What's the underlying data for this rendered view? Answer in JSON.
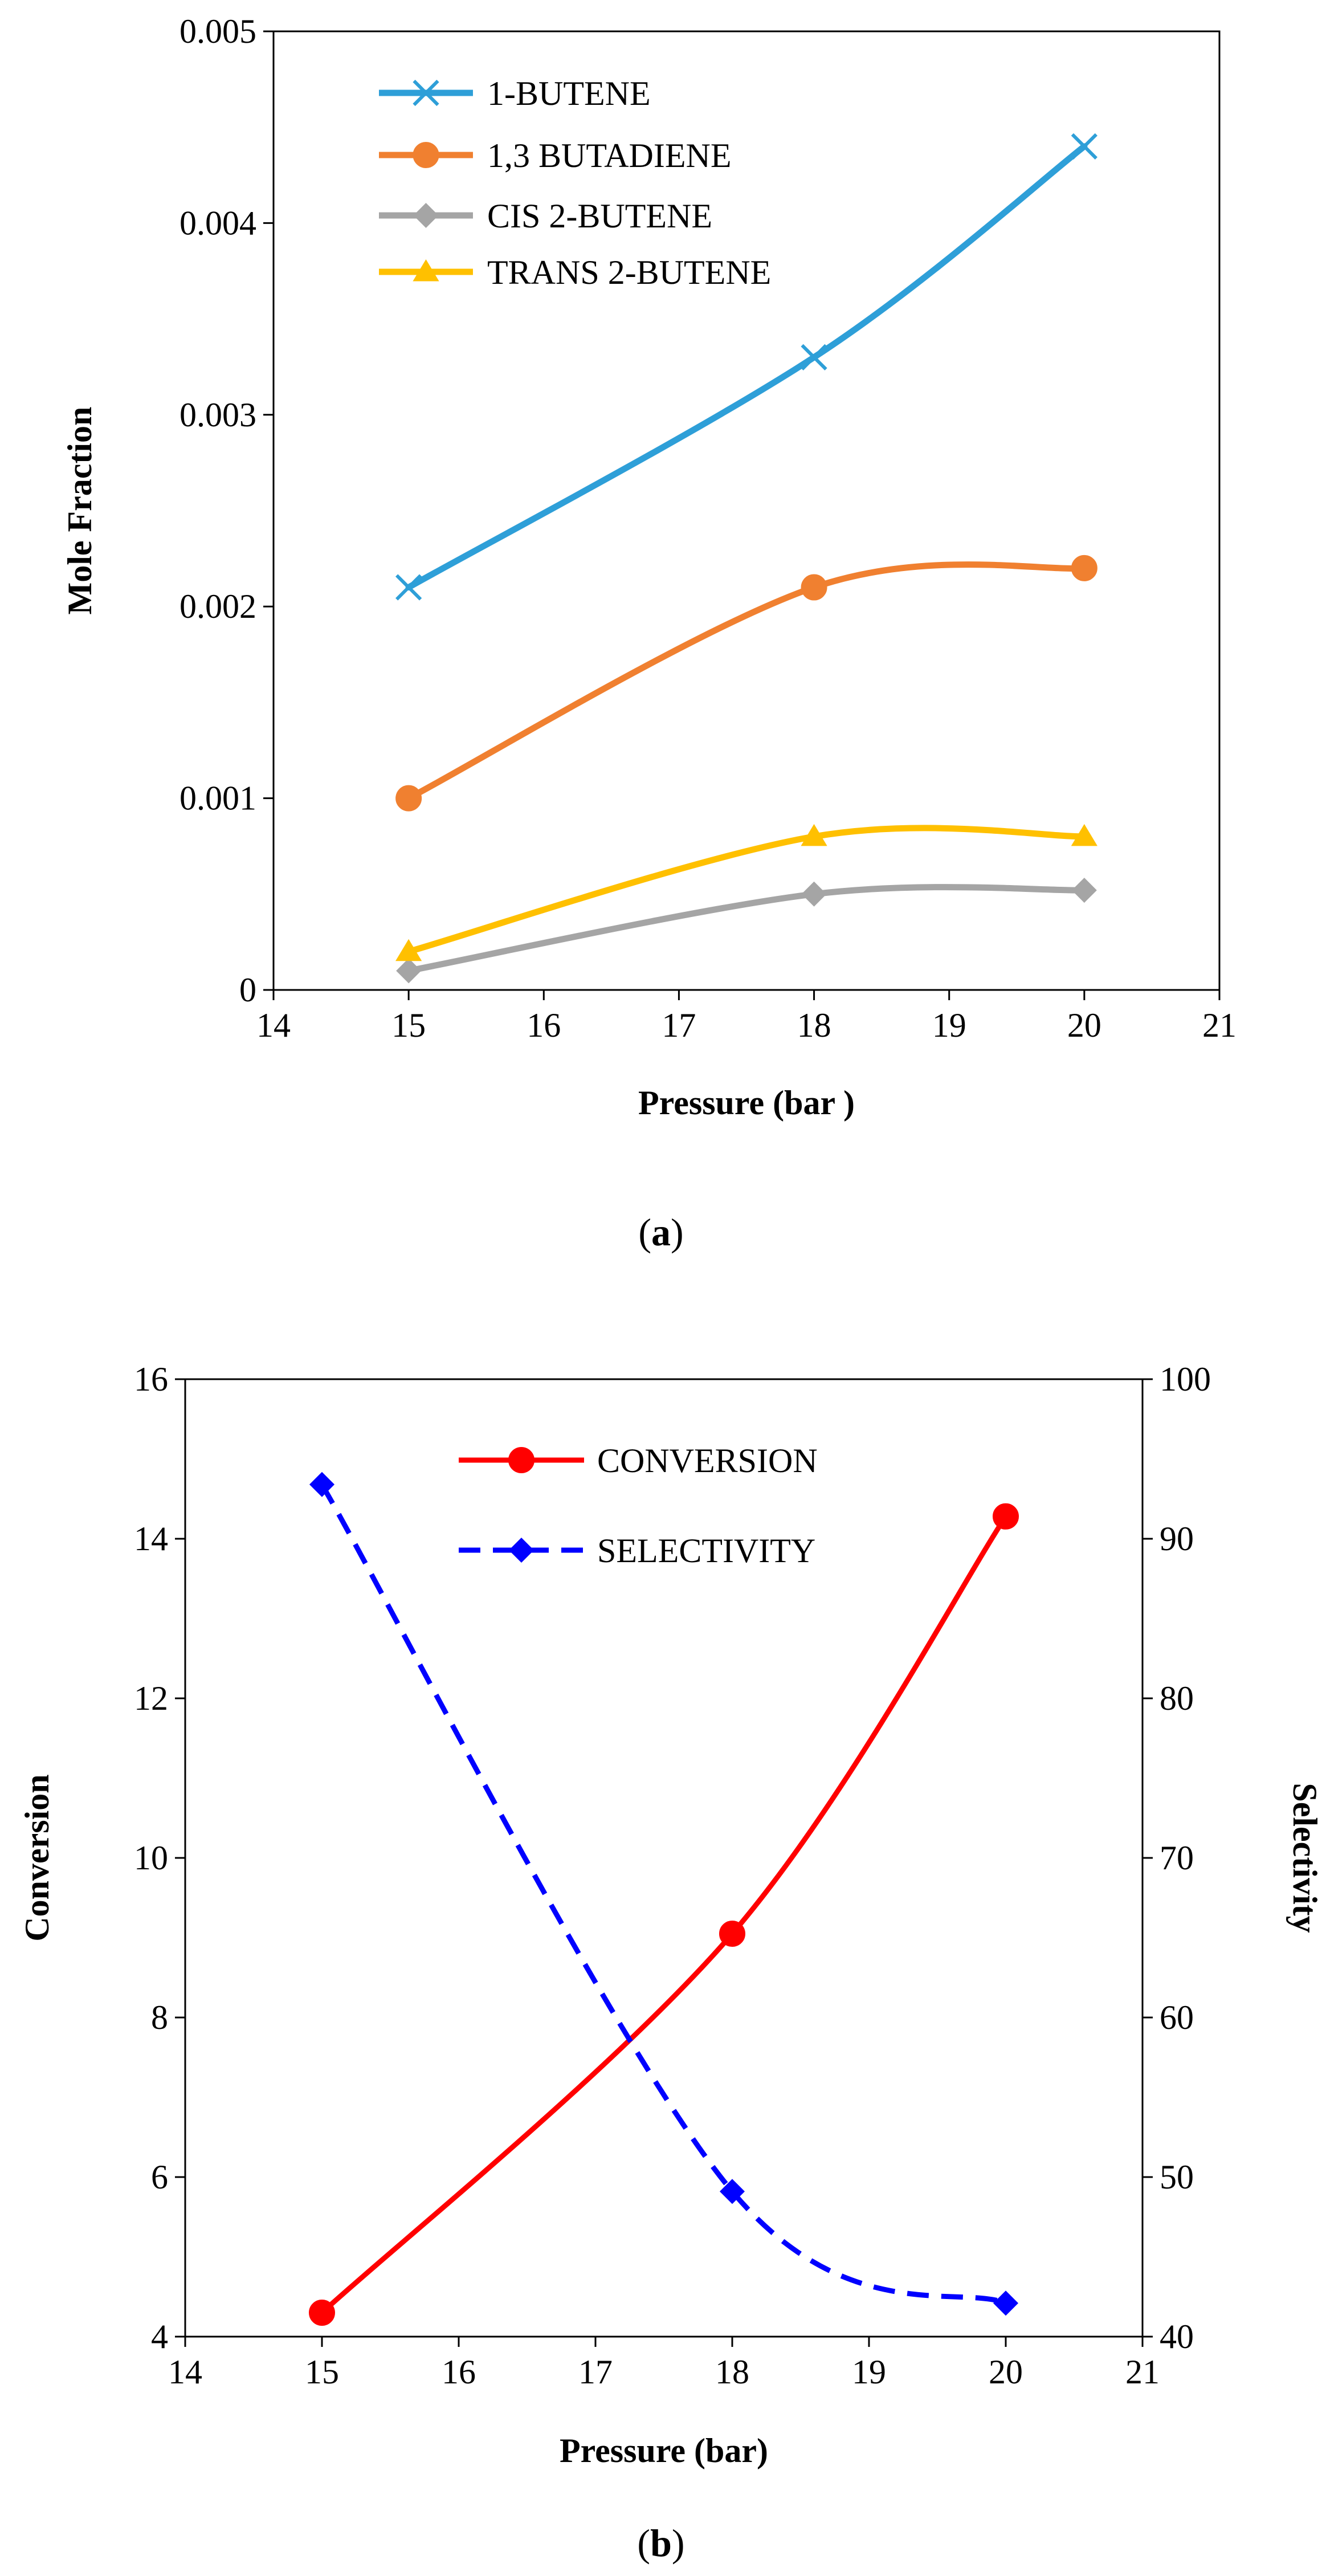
{
  "chart_data": [
    {
      "type": "line",
      "caption": "a",
      "title": "",
      "xlabel": "Pressure (bar )",
      "ylabel": "Mole Fraction",
      "xlim": [
        14,
        21
      ],
      "ylim": [
        0,
        0.005
      ],
      "x_ticks": [
        "14",
        "15",
        "16",
        "17",
        "18",
        "19",
        "20",
        "21"
      ],
      "y_ticks": [
        "0",
        "0.001",
        "0.002",
        "0.003",
        "0.004",
        "0.005"
      ],
      "grid": false,
      "legend_position": "top-left",
      "x": [
        15,
        18,
        20
      ],
      "series": [
        {
          "name": "1-BUTENE",
          "color": "#2E9FD8",
          "marker": "x",
          "values": [
            0.0021,
            0.0033,
            0.0044
          ]
        },
        {
          "name": "1,3 BUTADIENE",
          "color": "#F08030",
          "marker": "circle",
          "values": [
            0.001,
            0.0021,
            0.0022
          ]
        },
        {
          "name": "CIS 2-BUTENE",
          "color": "#A5A5A5",
          "marker": "diamond",
          "values": [
            0.0001,
            0.0005,
            0.00052
          ]
        },
        {
          "name": "TRANS 2-BUTENE",
          "color": "#FFC000",
          "marker": "triangle",
          "values": [
            0.0002,
            0.0008,
            0.0008
          ]
        }
      ]
    },
    {
      "type": "line",
      "caption": "b",
      "title": "",
      "xlabel": "Pressure (bar)",
      "ylabel": "Conversion",
      "y2label": "Selectivity",
      "xlim": [
        14,
        21
      ],
      "ylim": [
        4,
        16
      ],
      "y2lim": [
        40,
        100
      ],
      "x_ticks": [
        "14",
        "15",
        "16",
        "17",
        "18",
        "19",
        "20",
        "21"
      ],
      "y_ticks": [
        "4",
        "6",
        "8",
        "10",
        "12",
        "14",
        "16"
      ],
      "y2_ticks": [
        "40",
        "50",
        "60",
        "70",
        "80",
        "90",
        "100"
      ],
      "grid": false,
      "legend_position": "top-center",
      "x": [
        15,
        18,
        20
      ],
      "series": [
        {
          "name": "CONVERSION",
          "axis": "left",
          "color": "#FF0000",
          "marker": "circle",
          "dash": "solid",
          "values": [
            4.3,
            9.05,
            14.28
          ]
        },
        {
          "name": "SELECTIVITY",
          "axis": "right",
          "color": "#0000FF",
          "marker": "diamond",
          "dash": "dashed",
          "values": [
            93.4,
            49.1,
            42.1
          ]
        }
      ]
    }
  ]
}
